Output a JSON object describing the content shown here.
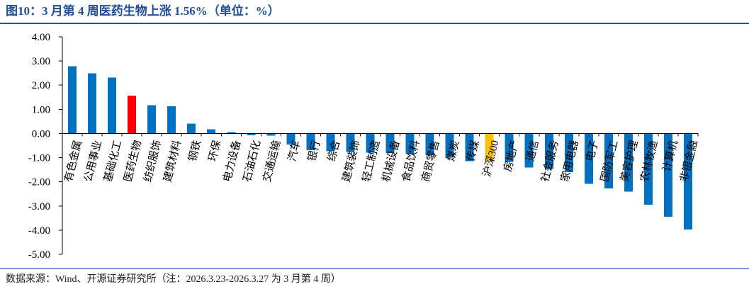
{
  "accent_color": "#1F4E96",
  "source": "数据来源：Wind、开源证券研究所（注：2026.3.23-2026.3.27 为 3 月第 4 周）",
  "chart_data": {
    "type": "bar",
    "title": "图10：3 月第 4 周医药生物上涨 1.56%（单位：%）",
    "categories": [
      "有色金属",
      "公用事业",
      "基础化工",
      "医药生物",
      "纺织服饰",
      "建筑材料",
      "钢铁",
      "环保",
      "电力设备",
      "石油石化",
      "交通运输",
      "汽车",
      "银行",
      "综合",
      "建筑装饰",
      "轻工制造",
      "机械设备",
      "食品饮料",
      "商贸零售",
      "煤炭",
      "传媒",
      "沪深300",
      "房地产",
      "通信",
      "社会服务",
      "家用电器",
      "电子",
      "国防军工",
      "美容护理",
      "农林牧渔",
      "计算机",
      "非银金融"
    ],
    "values": [
      2.78,
      2.49,
      2.31,
      1.56,
      1.17,
      1.12,
      0.41,
      0.18,
      0.06,
      -0.07,
      -0.09,
      -0.45,
      -0.69,
      -0.74,
      -0.76,
      -0.79,
      -0.81,
      -0.84,
      -0.89,
      -1.0,
      -1.14,
      -1.15,
      -1.17,
      -1.41,
      -1.47,
      -1.6,
      -2.09,
      -2.28,
      -2.4,
      -2.95,
      -3.45,
      -3.98
    ],
    "bar_colors": [
      "#0070C0",
      "#0070C0",
      "#0070C0",
      "#FF0000",
      "#0070C0",
      "#0070C0",
      "#0070C0",
      "#0070C0",
      "#0070C0",
      "#0070C0",
      "#0070C0",
      "#0070C0",
      "#0070C0",
      "#0070C0",
      "#0070C0",
      "#0070C0",
      "#0070C0",
      "#0070C0",
      "#0070C0",
      "#0070C0",
      "#0070C0",
      "#FFC000",
      "#0070C0",
      "#0070C0",
      "#0070C0",
      "#0070C0",
      "#0070C0",
      "#0070C0",
      "#0070C0",
      "#0070C0",
      "#0070C0",
      "#0070C0"
    ],
    "ylim": [
      -5,
      4
    ],
    "yticks": [
      "4.00",
      "3.00",
      "2.00",
      "1.00",
      "0.00",
      "-1.00",
      "-2.00",
      "-3.00",
      "-4.00",
      "-5.00"
    ],
    "grid": false,
    "legend": false
  }
}
